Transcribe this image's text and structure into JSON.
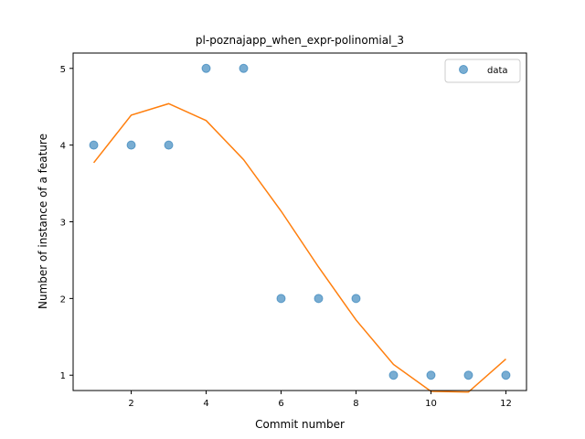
{
  "chart_data": {
    "type": "scatter",
    "title": "pl-poznajapp_when_expr-polinomial_3",
    "xlabel": "Commit number",
    "ylabel": "Number of instance of a feature",
    "xlim": [
      0.45,
      12.55
    ],
    "ylim": [
      0.8,
      5.2
    ],
    "x_ticks": [
      2,
      4,
      6,
      8,
      10,
      12
    ],
    "y_ticks": [
      1,
      2,
      3,
      4,
      5
    ],
    "legend_position": "upper right",
    "grid": false,
    "series": [
      {
        "name": "data",
        "kind": "scatter",
        "color": "#1f77b4",
        "x": [
          1,
          2,
          3,
          4,
          5,
          6,
          7,
          8,
          9,
          10,
          11,
          12
        ],
        "y": [
          4,
          4,
          4,
          5,
          5,
          2,
          2,
          2,
          1,
          1,
          1,
          1
        ]
      },
      {
        "kind": "line",
        "color": "#ff7f0e",
        "x": [
          1,
          2,
          3,
          4,
          5,
          6,
          7,
          8,
          9,
          10,
          11,
          12
        ],
        "y": [
          3.77,
          4.39,
          4.54,
          4.32,
          3.81,
          3.14,
          2.41,
          1.72,
          1.14,
          0.79,
          0.78,
          1.21
        ]
      }
    ]
  }
}
